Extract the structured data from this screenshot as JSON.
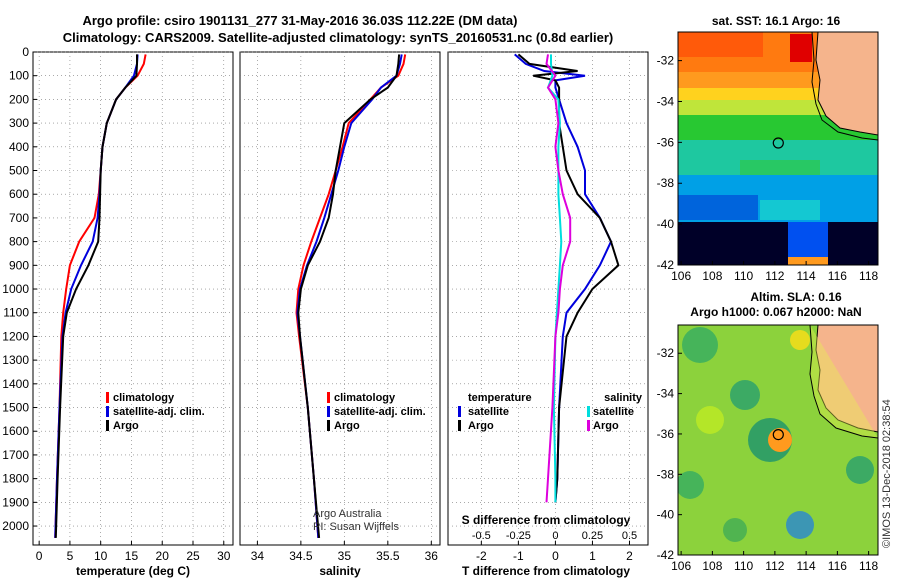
{
  "header": {
    "title_line1": "Argo profile: csiro 1901131_277 31-May-2016 36.03S 112.22E (DM data)",
    "title_line2": "Climatology: CARS2009. Satellite-adjusted climatology: synTS_20160531.nc (0.8d earlier)"
  },
  "colors": {
    "climatology": "#ff0000",
    "satellite": "#0000dd",
    "argo": "#000000",
    "sal_satellite": "#00dddd",
    "sal_argo": "#dd00dd",
    "land": "#f5b48c"
  },
  "chart_data": [
    {
      "type": "line",
      "panel": "temperature",
      "xlabel": "temperature (deg C)",
      "xlim": [
        -1,
        31.5
      ],
      "xticks": [
        "0",
        "5",
        "10",
        "15",
        "20",
        "25",
        "30"
      ],
      "ylim": [
        2080,
        0
      ],
      "yticks": [
        "0",
        "100",
        "200",
        "300",
        "400",
        "500",
        "600",
        "700",
        "800",
        "900",
        "1000",
        "1100",
        "1200",
        "1300",
        "1400",
        "1500",
        "1600",
        "1700",
        "1800",
        "1900",
        "2000"
      ],
      "grid": true,
      "legend": {
        "position": "center-right",
        "entries": [
          "climatology",
          "satellite-adj. clim.",
          "Argo"
        ]
      },
      "series": [
        {
          "name": "climatology",
          "depth": [
            10,
            50,
            100,
            150,
            200,
            300,
            400,
            500,
            600,
            700,
            800,
            900,
            1000,
            1100,
            1200,
            1500,
            1800,
            2050
          ],
          "values": [
            17.3,
            17.0,
            16.0,
            14.0,
            12.5,
            11.0,
            10.3,
            10.0,
            9.7,
            9.0,
            6.5,
            5.0,
            4.4,
            3.9,
            3.6,
            3.3,
            2.9,
            2.6
          ]
        },
        {
          "name": "satellite-adj. clim.",
          "depth": [
            10,
            50,
            100,
            150,
            200,
            300,
            400,
            500,
            600,
            700,
            800,
            900,
            1000,
            1100,
            1200,
            1500,
            1800,
            2050
          ],
          "values": [
            16.0,
            15.9,
            15.4,
            14.0,
            12.5,
            11.0,
            10.3,
            10.0,
            9.8,
            9.5,
            8.7,
            6.8,
            5.2,
            4.3,
            3.8,
            3.3,
            2.9,
            2.6
          ]
        },
        {
          "name": "Argo",
          "depth": [
            10,
            50,
            100,
            150,
            200,
            300,
            400,
            500,
            600,
            700,
            800,
            900,
            1000,
            1100,
            1200,
            1500,
            1800,
            2050
          ],
          "values": [
            15.9,
            15.9,
            15.8,
            14.0,
            12.5,
            11.0,
            10.3,
            10.0,
            9.9,
            9.8,
            9.6,
            8.0,
            6.0,
            4.5,
            3.9,
            3.4,
            3.0,
            2.7
          ]
        }
      ]
    },
    {
      "type": "line",
      "panel": "salinity",
      "xlabel": "salinity",
      "xlim": [
        33.8,
        36.1
      ],
      "xticks": [
        "34",
        "34.5",
        "35",
        "35.5",
        "36"
      ],
      "ylim": [
        2080,
        0
      ],
      "grid": true,
      "legend": {
        "position": "center-right",
        "entries": [
          "climatology",
          "satellite-adj. clim.",
          "Argo"
        ]
      },
      "annotation": [
        "Argo Australia",
        "PI: Susan Wijffels"
      ],
      "series": [
        {
          "name": "climatology",
          "depth": [
            10,
            50,
            100,
            150,
            200,
            300,
            400,
            500,
            600,
            700,
            800,
            900,
            1000,
            1100,
            1200,
            1500,
            1800,
            2050
          ],
          "values": [
            35.7,
            35.68,
            35.62,
            35.42,
            35.3,
            35.05,
            34.98,
            34.9,
            34.82,
            34.72,
            34.62,
            34.53,
            34.47,
            34.45,
            34.48,
            34.58,
            34.65,
            34.7
          ]
        },
        {
          "name": "satellite-adj. clim.",
          "depth": [
            10,
            50,
            100,
            150,
            200,
            300,
            400,
            500,
            600,
            700,
            800,
            900,
            1000,
            1100,
            1200,
            1500,
            1800,
            2050
          ],
          "values": [
            35.66,
            35.64,
            35.6,
            35.42,
            35.32,
            35.08,
            35.0,
            34.93,
            34.85,
            34.77,
            34.68,
            34.57,
            34.49,
            34.46,
            34.49,
            34.58,
            34.65,
            34.7
          ]
        },
        {
          "name": "Argo",
          "depth": [
            10,
            50,
            100,
            150,
            200,
            300,
            400,
            500,
            600,
            700,
            800,
            900,
            1000,
            1100,
            1200,
            1500,
            1800,
            2050
          ],
          "values": [
            35.63,
            35.62,
            35.6,
            35.5,
            35.3,
            35.0,
            34.95,
            34.9,
            34.87,
            34.82,
            34.72,
            34.58,
            34.5,
            34.47,
            34.49,
            34.58,
            34.65,
            34.71
          ]
        }
      ]
    },
    {
      "type": "line",
      "panel": "differences",
      "xlabel": "T difference from climatology",
      "xlabel_top": "S difference from climatology",
      "xlim": [
        -2.9,
        2.5
      ],
      "xticks": [
        "-2",
        "-1",
        "0",
        "1",
        "2"
      ],
      "xticks_top": [
        "-0.5",
        "-0.25",
        "0",
        "0.25",
        "0.5"
      ],
      "ylim": [
        2080,
        0
      ],
      "grid": true,
      "legend": {
        "position": "center",
        "temperature_header": "temperature",
        "salinity_header": "salinity",
        "entries": [
          "satellite",
          "Argo"
        ]
      },
      "series": [
        {
          "name": "temperature satellite",
          "depth": [
            10,
            50,
            80,
            100,
            120,
            150,
            200,
            300,
            400,
            500,
            600,
            700,
            800,
            900,
            1000,
            1100,
            1200,
            1500,
            1800,
            1900
          ],
          "values": [
            -1.1,
            -0.8,
            -0.3,
            0.8,
            0.0,
            0.0,
            0.1,
            0.3,
            0.6,
            0.8,
            0.8,
            1.2,
            1.5,
            1.2,
            0.8,
            0.3,
            0.2,
            0.1,
            0.05,
            0.0
          ]
        },
        {
          "name": "temperature Argo",
          "depth": [
            10,
            50,
            80,
            100,
            120,
            150,
            200,
            300,
            400,
            500,
            600,
            700,
            800,
            900,
            1000,
            1100,
            1200,
            1500,
            1800,
            1900
          ],
          "values": [
            -1.0,
            -0.7,
            0.6,
            -0.6,
            0.0,
            0.1,
            0.1,
            0.1,
            0.2,
            0.3,
            0.6,
            1.2,
            1.5,
            1.7,
            1.0,
            0.6,
            0.3,
            0.1,
            0.05,
            0.0
          ]
        },
        {
          "name": "salinity satellite",
          "depth": [
            10,
            50,
            100,
            150,
            200,
            300,
            400,
            500,
            600,
            700,
            800,
            900,
            1000,
            1100,
            1200,
            1500,
            1800,
            1900
          ],
          "values": [
            -0.03,
            -0.03,
            -0.02,
            -0.05,
            0.02,
            0.03,
            0.02,
            0.02,
            0.02,
            0.03,
            0.04,
            0.03,
            0.02,
            0.01,
            0.0,
            -0.01,
            0.0,
            0.0
          ]
        },
        {
          "name": "salinity Argo",
          "depth": [
            10,
            50,
            100,
            150,
            200,
            300,
            400,
            500,
            600,
            700,
            800,
            900,
            1000,
            1100,
            1200,
            1500,
            1800,
            1900
          ],
          "values": [
            -0.05,
            -0.06,
            0.0,
            -0.05,
            0.0,
            0.02,
            0.0,
            0.02,
            0.05,
            0.1,
            0.1,
            0.05,
            0.03,
            0.02,
            0.0,
            -0.02,
            -0.05,
            -0.06
          ]
        }
      ]
    },
    {
      "type": "heatmap",
      "panel": "sst-map",
      "title": "sat. SST: 16.1 Argo: 16",
      "xticks": [
        "106",
        "108",
        "110",
        "112",
        "114",
        "116",
        "118"
      ],
      "yticks": [
        "-32",
        "-34",
        "-36",
        "-38",
        "-40",
        "-42"
      ],
      "xlim": [
        105.8,
        118.6
      ],
      "ylim": [
        -42,
        -30.6
      ],
      "marker": {
        "lon": 112.22,
        "lat": -36.03
      }
    },
    {
      "type": "heatmap",
      "panel": "sla-map",
      "title": "Altim. SLA: 0.16",
      "subtitle": "Argo h1000: 0.067 h2000: NaN",
      "xticks": [
        "106",
        "108",
        "110",
        "112",
        "114",
        "116",
        "118"
      ],
      "yticks": [
        "-32",
        "-34",
        "-36",
        "-38",
        "-40",
        "-42"
      ],
      "xlim": [
        105.8,
        118.6
      ],
      "ylim": [
        -42,
        -30.6
      ],
      "marker": {
        "lon": 112.22,
        "lat": -36.03
      }
    }
  ],
  "legend_labels": {
    "climatology": "climatology",
    "satellite_adj": "satellite-adj. clim.",
    "argo": "Argo",
    "satellite": "satellite",
    "temperature": "temperature",
    "salinity": "salinity"
  },
  "credit": "©IMOS 13-Dec-2018 02:38:54"
}
